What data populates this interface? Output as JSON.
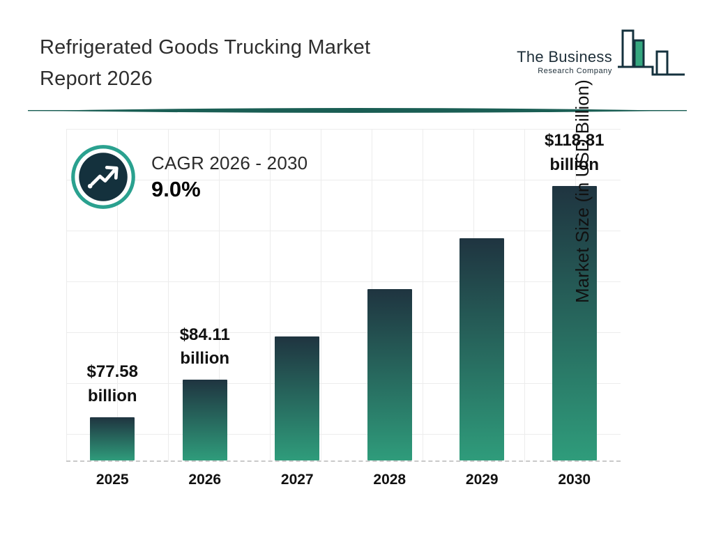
{
  "header": {
    "title_line1": "Refrigerated Goods Trucking Market",
    "title_line2": "Report 2026",
    "logo": {
      "name_line1": "The Business",
      "name_line2": "Research Company"
    }
  },
  "cagr": {
    "label": "CAGR 2026 - 2030",
    "value": "9.0%"
  },
  "chart_data": {
    "type": "bar",
    "title": "Refrigerated Goods Trucking Market Report 2026",
    "categories": [
      "2025",
      "2026",
      "2027",
      "2028",
      "2029",
      "2030"
    ],
    "values": [
      77.58,
      84.11,
      91.68,
      99.93,
      108.92,
      118.81
    ],
    "value_labels": [
      {
        "amount": "$77.58",
        "unit": "billion"
      },
      {
        "amount": "$84.11",
        "unit": "billion"
      },
      null,
      null,
      null,
      {
        "amount": "$118.81",
        "unit": "billion"
      }
    ],
    "xlabel": "",
    "ylabel": "Market Size (in USD Billion)",
    "ylim": [
      70,
      128
    ],
    "grid": true,
    "legend": false,
    "annotation": "CAGR 2026 - 2030: 9.0%"
  },
  "colors": {
    "bar_top": "#1f3440",
    "bar_bottom": "#2f9c7b",
    "accent_teal": "#2aa18f",
    "divider": "#1a5e54",
    "badge_fill": "#14313d",
    "grid_line": "#ececec",
    "text_dark": "#1c1c1c",
    "logo_green": "#35a77f"
  }
}
